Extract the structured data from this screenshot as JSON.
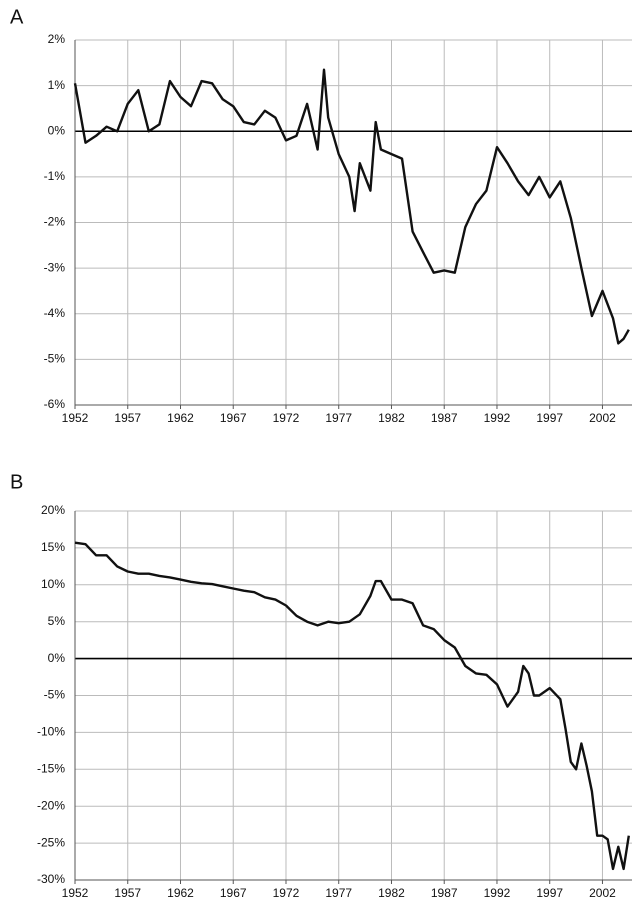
{
  "chart_data": [
    {
      "label": "A",
      "type": "line",
      "color": "#111111",
      "grid": true,
      "x": [
        1952,
        1953,
        1954,
        1955,
        1956,
        1957,
        1958,
        1959,
        1960,
        1961,
        1962,
        1963,
        1964,
        1965,
        1966,
        1967,
        1968,
        1969,
        1970,
        1971,
        1972,
        1973,
        1974,
        1975,
        1975.6,
        1976,
        1977,
        1978,
        1978.5,
        1979,
        1980,
        1980.5,
        1981,
        1982,
        1983,
        1984,
        1985,
        1986,
        1987,
        1988,
        1989,
        1990,
        1991,
        1992,
        1993,
        1994,
        1995,
        1996,
        1997,
        1998,
        1999,
        2000,
        2001,
        2002,
        2003,
        2003.5,
        2004,
        2004.5
      ],
      "values": [
        1.05,
        -0.25,
        -0.1,
        0.1,
        0.0,
        0.6,
        0.9,
        0.0,
        0.15,
        1.1,
        0.75,
        0.55,
        1.1,
        1.05,
        0.7,
        0.55,
        0.2,
        0.15,
        0.45,
        0.3,
        -0.2,
        -0.1,
        0.6,
        -0.4,
        1.35,
        0.3,
        -0.5,
        -1.0,
        -1.75,
        -0.7,
        -1.3,
        0.2,
        -0.4,
        -0.5,
        -0.6,
        -2.2,
        -2.65,
        -3.1,
        -3.05,
        -3.1,
        -2.1,
        -1.6,
        -1.3,
        -0.35,
        -0.7,
        -1.1,
        -1.4,
        -1.0,
        -1.45,
        -1.1,
        -1.9,
        -3.0,
        -4.05,
        -3.5,
        -4.1,
        -4.65,
        -4.55,
        -4.35
      ],
      "xlim": [
        1952,
        2004.8
      ],
      "xticks": [
        1952,
        1957,
        1962,
        1967,
        1972,
        1977,
        1982,
        1987,
        1992,
        1997,
        2002
      ],
      "ylim": [
        -6,
        2
      ],
      "yticks": [
        {
          "value": -6,
          "label": "-6%"
        },
        {
          "value": -5,
          "label": "-5%"
        },
        {
          "value": -4,
          "label": "-4%"
        },
        {
          "value": -3,
          "label": "-3%"
        },
        {
          "value": -2,
          "label": "-2%"
        },
        {
          "value": -1,
          "label": "-1%"
        },
        {
          "value": 0,
          "label": "0%"
        },
        {
          "value": 1,
          "label": "1%"
        },
        {
          "value": 2,
          "label": "2%"
        }
      ]
    },
    {
      "label": "B",
      "type": "line",
      "color": "#111111",
      "grid": true,
      "x": [
        1952,
        1953,
        1954,
        1955,
        1956,
        1957,
        1958,
        1959,
        1960,
        1961,
        1962,
        1963,
        1964,
        1965,
        1966,
        1967,
        1968,
        1969,
        1970,
        1971,
        1972,
        1973,
        1974,
        1975,
        1976,
        1977,
        1978,
        1979,
        1980,
        1980.5,
        1981,
        1982,
        1983,
        1984,
        1985,
        1986,
        1987,
        1988,
        1989,
        1990,
        1991,
        1992,
        1993,
        1994,
        1994.5,
        1995,
        1995.5,
        1996,
        1997,
        1998,
        1998.5,
        1999,
        1999.5,
        2000,
        2000.5,
        2001,
        2001.5,
        2002,
        2002.5,
        2003,
        2003.5,
        2004,
        2004.5
      ],
      "values": [
        15.7,
        15.5,
        14.0,
        14.0,
        12.5,
        11.8,
        11.5,
        11.5,
        11.2,
        11.0,
        10.7,
        10.4,
        10.2,
        10.1,
        9.8,
        9.5,
        9.2,
        9.0,
        8.3,
        8.0,
        7.2,
        5.8,
        5.0,
        4.5,
        5.0,
        4.8,
        5.0,
        6.0,
        8.5,
        10.5,
        10.5,
        8.0,
        8.0,
        7.5,
        4.5,
        4.0,
        2.5,
        1.5,
        -1.0,
        -2.0,
        -2.2,
        -3.5,
        -6.5,
        -4.5,
        -1.0,
        -2.0,
        -5.0,
        -5.0,
        -4.0,
        -5.5,
        -9.5,
        -14.0,
        -15.0,
        -11.5,
        -14.5,
        -18.0,
        -24.0,
        -24.0,
        -24.5,
        -28.5,
        -25.5,
        -28.5,
        -24.0
      ],
      "xlim": [
        1952,
        2004.8
      ],
      "xticks": [
        1952,
        1957,
        1962,
        1967,
        1972,
        1977,
        1982,
        1987,
        1992,
        1997,
        2002
      ],
      "ylim": [
        -30,
        20
      ],
      "yticks": [
        {
          "value": -30,
          "label": "-30%"
        },
        {
          "value": -25,
          "label": "-25%"
        },
        {
          "value": -20,
          "label": "-20%"
        },
        {
          "value": -15,
          "label": "-15%"
        },
        {
          "value": -10,
          "label": "-10%"
        },
        {
          "value": -5,
          "label": "-5%"
        },
        {
          "value": 0,
          "label": "0%"
        },
        {
          "value": 5,
          "label": "5%"
        },
        {
          "value": 10,
          "label": "10%"
        },
        {
          "value": 15,
          "label": "15%"
        },
        {
          "value": 20,
          "label": "20%"
        }
      ]
    }
  ]
}
